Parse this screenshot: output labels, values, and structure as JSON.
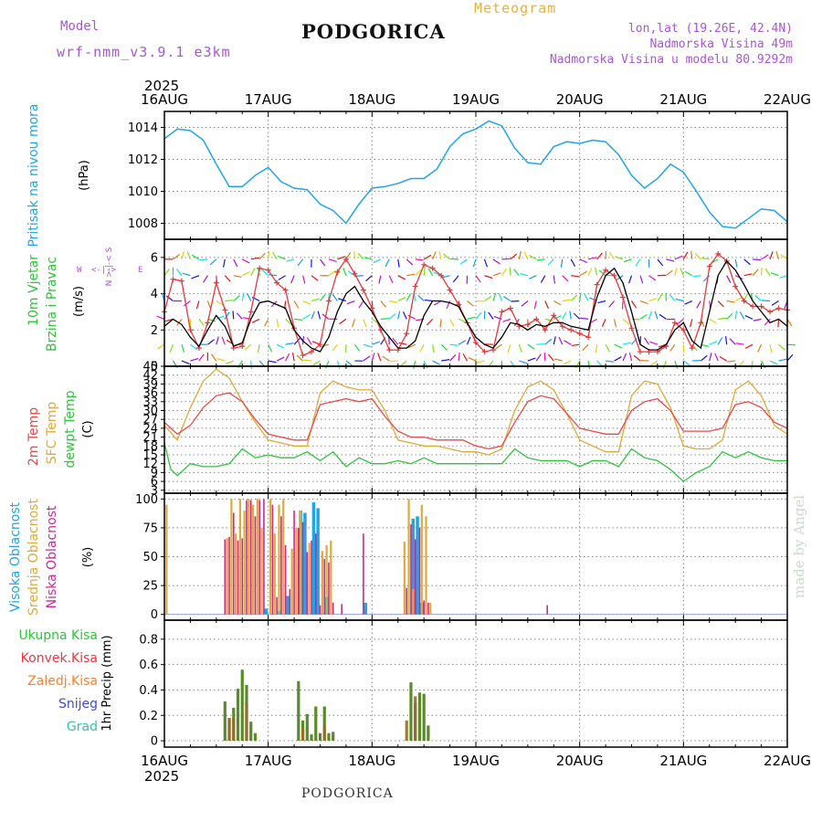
{
  "header": {
    "model_label": "Model",
    "model_name": "wrf-nmm_v3.9.1 e3km",
    "location": "PODGORICA",
    "meteogram_label": "Meteogram",
    "coords": "lon,lat (19.26E, 42.4N)",
    "elevation": "Nadmorska Visina 49m",
    "model_elevation": "Nadmorska Visina u modelu 80.9292m"
  },
  "footer": {
    "credit": "made by Angel",
    "station": "PODGORICA"
  },
  "colors": {
    "pressure": "#1fa5e8",
    "wind_speed": "#000000",
    "gust": "#e8383d",
    "temp2m": "#e84a4a",
    "sfc_temp": "#e0a93a",
    "dewpt": "#2ec43a",
    "cloud_high": "#1fa5e8",
    "cloud_mid": "#e0a93a",
    "cloud_low": "#c92a8f",
    "precip_total": "#2ec43a",
    "precip_conv": "#e8383d",
    "precip_frozen": "#ff7f27",
    "precip_snow": "#3b4bd8",
    "precip_graupel": "#2ec4b5",
    "wind_legend": "#a855d8"
  },
  "chart_data": [
    {
      "id": "pressure",
      "type": "line",
      "title": "Pritisak na nivou mora",
      "ylabel": "(hPa)",
      "xlim": [
        0,
        144
      ],
      "ylim": [
        1007,
        1015
      ],
      "yticks": [
        1008,
        1010,
        1012,
        1014
      ],
      "x_top_ticks": [
        "16AUG",
        "17AUG",
        "18AUG",
        "19AUG",
        "20AUG",
        "21AUG",
        "22AUG"
      ],
      "x_top_year": "2025",
      "series": [
        {
          "name": "Sea level pressure",
          "x": [
            0,
            3,
            6,
            9,
            12,
            15,
            18,
            21,
            24,
            27,
            30,
            33,
            36,
            39,
            42,
            45,
            48,
            51,
            54,
            57,
            60,
            63,
            66,
            69,
            72,
            75,
            78,
            81,
            84,
            87,
            90,
            93,
            96,
            99,
            102,
            105,
            108,
            111,
            114,
            117,
            120,
            123,
            126,
            129,
            132,
            135,
            138,
            141,
            144
          ],
          "values": [
            1013.3,
            1013.9,
            1013.8,
            1013.2,
            1011.7,
            1010.3,
            1010.3,
            1011.0,
            1011.5,
            1010.6,
            1010.2,
            1010.1,
            1009.2,
            1008.8,
            1008.0,
            1009.2,
            1010.2,
            1010.3,
            1010.5,
            1010.8,
            1010.8,
            1011.4,
            1012.8,
            1013.6,
            1013.9,
            1014.4,
            1014.1,
            1012.7,
            1011.8,
            1011.7,
            1012.8,
            1013.1,
            1013.0,
            1013.2,
            1013.1,
            1012.3,
            1011.0,
            1010.2,
            1010.8,
            1011.7,
            1011.2,
            1010.0,
            1008.7,
            1007.8,
            1007.7,
            1008.3,
            1008.9,
            1008.8,
            1008.1
          ]
        }
      ]
    },
    {
      "id": "wind",
      "type": "line",
      "title": "10m Vjetar",
      "title2": "Brzina i Pravac",
      "ylabel": "(m/s)",
      "compass": {
        "n": "N",
        "s": "S",
        "e": "E",
        "w": "W"
      },
      "xlim": [
        0,
        144
      ],
      "ylim": [
        0,
        7
      ],
      "yticks": [
        0,
        2,
        4,
        6
      ],
      "series": [
        {
          "name": "Wind speed",
          "x": [
            0,
            2,
            4,
            6,
            8,
            10,
            12,
            14,
            16,
            18,
            20,
            22,
            24,
            26,
            28,
            30,
            32,
            34,
            36,
            38,
            40,
            42,
            44,
            46,
            48,
            50,
            52,
            54,
            56,
            58,
            60,
            62,
            64,
            66,
            68,
            70,
            72,
            74,
            76,
            78,
            80,
            82,
            84,
            86,
            88,
            90,
            92,
            94,
            96,
            98,
            100,
            102,
            104,
            106,
            108,
            110,
            112,
            114,
            116,
            118,
            120,
            122,
            124,
            126,
            128,
            130,
            132,
            134,
            136,
            138,
            140,
            142,
            144
          ],
          "values": [
            2.2,
            2.6,
            2.3,
            1.6,
            1.1,
            2.0,
            2.8,
            2.2,
            1.1,
            1.3,
            2.6,
            3.5,
            3.6,
            3.4,
            3.2,
            2.0,
            1.4,
            1.0,
            0.8,
            1.6,
            3.0,
            4.0,
            4.4,
            3.6,
            3.0,
            2.2,
            1.6,
            1.0,
            1.0,
            1.4,
            2.8,
            3.6,
            3.6,
            3.5,
            3.3,
            2.4,
            1.6,
            1.2,
            1.0,
            1.6,
            2.4,
            2.3,
            2.0,
            2.3,
            2.2,
            2.4,
            2.4,
            2.2,
            2.1,
            2.0,
            3.8,
            5.0,
            5.4,
            4.6,
            3.0,
            1.2,
            0.9,
            0.9,
            1.2,
            2.0,
            2.4,
            1.4,
            1.0,
            3.0,
            5.0,
            5.8,
            5.3,
            4.5,
            3.6,
            3.0,
            2.4,
            2.6,
            2.2
          ]
        },
        {
          "name": "Gust",
          "x": [
            0,
            2,
            4,
            6,
            8,
            10,
            12,
            14,
            16,
            18,
            20,
            22,
            24,
            26,
            28,
            30,
            32,
            34,
            36,
            38,
            40,
            42,
            44,
            46,
            48,
            50,
            52,
            54,
            56,
            58,
            60,
            62,
            64,
            66,
            68,
            70,
            72,
            74,
            76,
            78,
            80,
            82,
            84,
            86,
            88,
            90,
            92,
            94,
            96,
            98,
            100,
            102,
            104,
            106,
            108,
            110,
            112,
            114,
            116,
            118,
            120,
            122,
            124,
            126,
            128,
            130,
            132,
            134,
            136,
            138,
            140,
            142,
            144
          ],
          "values": [
            3.0,
            4.8,
            4.7,
            2.0,
            1.0,
            2.4,
            4.6,
            3.1,
            1.0,
            1.1,
            3.0,
            5.4,
            5.3,
            4.6,
            4.2,
            2.1,
            0.6,
            0.8,
            1.2,
            3.6,
            5.2,
            5.9,
            5.1,
            4.2,
            3.2,
            2.0,
            0.9,
            0.9,
            1.8,
            4.4,
            5.6,
            5.4,
            5.0,
            4.2,
            3.4,
            2.4,
            1.3,
            0.8,
            0.9,
            3.0,
            3.2,
            2.2,
            2.3,
            2.6,
            2.0,
            2.8,
            2.2,
            2.0,
            1.8,
            1.6,
            4.5,
            5.3,
            5.0,
            3.8,
            2.1,
            0.8,
            0.8,
            0.8,
            1.1,
            2.4,
            2.0,
            1.0,
            2.4,
            5.5,
            6.2,
            5.8,
            4.4,
            3.6,
            3.3,
            3.3,
            3.0,
            3.2,
            3.1
          ]
        }
      ]
    },
    {
      "id": "temperature",
      "type": "line",
      "labels": [
        "2m Temp",
        "SFC Temp",
        "dewpt Temp"
      ],
      "ylabel": "(C)",
      "xlim": [
        0,
        144
      ],
      "ylim": [
        2,
        45
      ],
      "yticks": [
        3,
        6,
        9,
        12,
        15,
        18,
        21,
        24,
        27,
        30,
        33,
        36,
        39,
        42,
        45
      ],
      "series": [
        {
          "name": "2m Temp",
          "x": [
            0,
            3,
            6,
            9,
            12,
            15,
            18,
            21,
            24,
            27,
            30,
            33,
            36,
            39,
            42,
            45,
            48,
            51,
            54,
            57,
            60,
            63,
            66,
            69,
            72,
            75,
            78,
            81,
            84,
            87,
            90,
            93,
            96,
            99,
            102,
            105,
            108,
            111,
            114,
            117,
            120,
            123,
            126,
            129,
            132,
            135,
            138,
            141,
            144
          ],
          "values": [
            26,
            22,
            25,
            31,
            35,
            36,
            33,
            27,
            22,
            21,
            20,
            20,
            32,
            33,
            34,
            33,
            34,
            28,
            23,
            21,
            21,
            20,
            20,
            20,
            18,
            17,
            18,
            26,
            33,
            35,
            34,
            29,
            24,
            23,
            22,
            22,
            30,
            33,
            34,
            30,
            23,
            23,
            23,
            24,
            32,
            33,
            31,
            26,
            24
          ]
        },
        {
          "name": "SFC Temp",
          "x": [
            0,
            3,
            6,
            9,
            12,
            15,
            18,
            21,
            24,
            27,
            30,
            33,
            36,
            39,
            42,
            45,
            48,
            51,
            54,
            57,
            60,
            63,
            66,
            69,
            72,
            75,
            78,
            81,
            84,
            87,
            90,
            93,
            96,
            99,
            102,
            105,
            108,
            111,
            114,
            117,
            120,
            123,
            126,
            129,
            132,
            135,
            138,
            141,
            144
          ],
          "values": [
            25,
            20,
            31,
            40,
            44,
            41,
            33,
            26,
            20,
            19,
            18,
            18,
            36,
            40,
            38,
            37,
            37,
            30,
            20,
            19,
            18,
            18,
            17,
            16,
            16,
            15,
            17,
            30,
            38,
            40,
            37,
            29,
            20,
            18,
            16,
            16,
            35,
            40,
            39,
            31,
            18,
            17,
            17,
            20,
            37,
            40,
            35,
            25,
            22
          ]
        },
        {
          "name": "dewpt Temp",
          "x": [
            0,
            1.5,
            3,
            6,
            9,
            12,
            15,
            18,
            21,
            24,
            27,
            30,
            33,
            36,
            39,
            42,
            45,
            48,
            51,
            54,
            57,
            60,
            63,
            66,
            69,
            72,
            75,
            78,
            81,
            84,
            87,
            90,
            93,
            96,
            99,
            102,
            105,
            108,
            111,
            114,
            117,
            120,
            123,
            126,
            129,
            132,
            135,
            138,
            141,
            144
          ],
          "values": [
            19,
            10,
            8,
            12,
            11,
            11,
            12,
            17,
            14,
            15,
            14,
            14,
            16,
            13,
            16,
            11,
            14,
            12,
            12,
            13,
            12,
            14,
            12,
            12,
            12,
            12,
            12,
            12,
            17,
            14,
            13,
            13,
            13,
            11,
            13,
            13,
            11,
            17,
            14,
            13,
            10,
            6,
            9,
            11,
            16,
            14,
            16,
            14,
            13,
            13
          ]
        }
      ]
    },
    {
      "id": "cloud",
      "type": "bar",
      "labels": [
        "Visoka Oblacnost",
        "Srednja Oblacnost",
        "Niska Oblacnost"
      ],
      "ylabel": "(%)",
      "xlim": [
        0,
        144
      ],
      "ylim": [
        -5,
        105
      ],
      "yticks": [
        0,
        25,
        50,
        75,
        100
      ],
      "series": [
        {
          "name": "Visoka",
          "x": [
            23.5,
            26.5,
            28.5,
            31.5,
            32.5,
            34.5,
            35.5,
            37.5,
            46.5,
            57.5,
            58.5,
            59.5
          ],
          "values": [
            5,
            3,
            16,
            90,
            88,
            97,
            92,
            15,
            10,
            83,
            85,
            10
          ]
        },
        {
          "name": "Srednja",
          "x": [
            0.5,
            14.5,
            15.5,
            16.5,
            17.5,
            18.5,
            19.5,
            20.5,
            21.5,
            22.5,
            24.5,
            25.5,
            26.5,
            27.5,
            29.5,
            30.5,
            31.5,
            33.5,
            36.5,
            37.5,
            38.5,
            55.5,
            56.5,
            57.5,
            59.5,
            60.5,
            61.5
          ],
          "values": [
            95,
            66,
            100,
            70,
            100,
            90,
            100,
            95,
            100,
            75,
            100,
            70,
            95,
            100,
            57,
            75,
            90,
            62,
            55,
            60,
            64,
            63,
            100,
            22,
            95,
            85,
            10
          ]
        },
        {
          "name": "Niska",
          "x": [
            14,
            15,
            16,
            17,
            18,
            19,
            20,
            21,
            22,
            23,
            25,
            26,
            27,
            28,
            29,
            30,
            31,
            32,
            33,
            34,
            35,
            36,
            37,
            38,
            39,
            41,
            46,
            56,
            57,
            58,
            59,
            60,
            61,
            88.5
          ],
          "values": [
            65,
            67,
            88,
            64,
            66,
            99,
            99,
            85,
            99,
            100,
            95,
            15,
            85,
            60,
            22,
            90,
            75,
            80,
            54,
            64,
            70,
            8,
            48,
            45,
            10,
            9,
            70,
            23,
            78,
            65,
            75,
            12,
            10,
            8
          ]
        }
      ]
    },
    {
      "id": "precip",
      "type": "bar",
      "labels": [
        "Ukupna Kisa",
        "Konvek.Kisa",
        "Zaledj.Kisa",
        "Snijeg",
        "Grad"
      ],
      "ylabel": "1hr Precip (mm)",
      "xlim": [
        0,
        144
      ],
      "ylim": [
        -0.05,
        0.95
      ],
      "yticks": [
        0,
        0.2,
        0.4,
        0.6,
        0.8
      ],
      "x_bottom_ticks": [
        "16AUG",
        "17AUG",
        "18AUG",
        "19AUG",
        "20AUG",
        "21AUG",
        "22AUG"
      ],
      "x_bottom_year": "2025",
      "series": [
        {
          "name": "Ukupna Kisa",
          "x": [
            14,
            15,
            16,
            17,
            18,
            19,
            20,
            21,
            31,
            32,
            33,
            34,
            35,
            36,
            37,
            38,
            39,
            57,
            58,
            59,
            60,
            61
          ],
          "values": [
            0.31,
            0.18,
            0.26,
            0.41,
            0.56,
            0.44,
            0.15,
            0.06,
            0.47,
            0.16,
            0.21,
            0.05,
            0.27,
            0.06,
            0.27,
            0.06,
            0.07,
            0.46,
            0.3,
            0.38,
            0.37,
            0.12
          ]
        },
        {
          "name": "Konvek.Kisa",
          "x": [
            15,
            16,
            19,
            32,
            37,
            56,
            58
          ],
          "values": [
            0.17,
            0.18,
            0.3,
            0.1,
            0.12,
            0.16,
            0.35
          ]
        }
      ]
    }
  ]
}
